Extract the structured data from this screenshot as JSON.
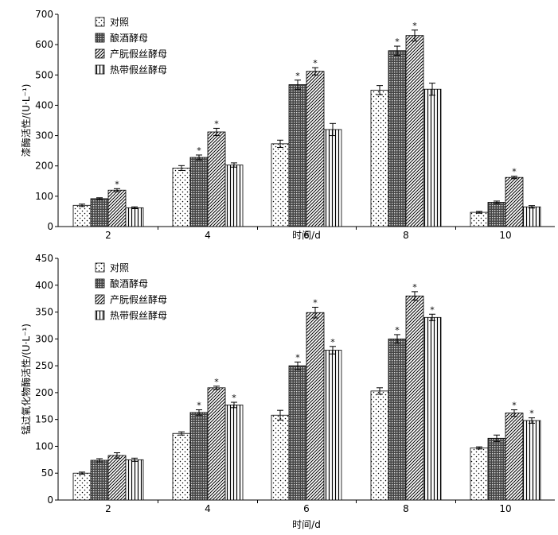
{
  "chart_data": [
    {
      "type": "bar",
      "ylabel": "漆酶活性/(U·L⁻¹)",
      "xlabel": "时间/d",
      "categories": [
        "2",
        "4",
        "6",
        "8",
        "10"
      ],
      "ylim": [
        0,
        700
      ],
      "yticks": [
        0,
        100,
        200,
        300,
        400,
        500,
        600,
        700
      ],
      "legend_position": "top-left",
      "series": [
        {
          "name": "对照",
          "pattern": "dots",
          "values": [
            70,
            193,
            273,
            450,
            47
          ],
          "errors": [
            4,
            8,
            12,
            15,
            3
          ],
          "significant": [
            false,
            false,
            false,
            false,
            false
          ]
        },
        {
          "name": "酿酒酵母",
          "pattern": "crosshatch",
          "values": [
            92,
            228,
            468,
            580,
            80
          ],
          "errors": [
            3,
            8,
            15,
            15,
            4
          ],
          "significant": [
            false,
            true,
            true,
            true,
            false
          ]
        },
        {
          "name": "产朊假丝酵母",
          "pattern": "diagonal",
          "values": [
            120,
            312,
            512,
            630,
            162
          ],
          "errors": [
            5,
            12,
            12,
            18,
            4
          ],
          "significant": [
            true,
            true,
            true,
            true,
            true
          ]
        },
        {
          "name": "热带假丝酵母",
          "pattern": "vertical",
          "values": [
            62,
            203,
            320,
            453,
            65
          ],
          "errors": [
            3,
            7,
            20,
            20,
            4
          ],
          "significant": [
            false,
            false,
            false,
            false,
            false
          ]
        }
      ]
    },
    {
      "type": "bar",
      "ylabel": "锰过氧化物酶活性/(U·L⁻¹)",
      "xlabel": "时间/d",
      "categories": [
        "2",
        "4",
        "6",
        "8",
        "10"
      ],
      "ylim": [
        0,
        450
      ],
      "yticks": [
        0,
        50,
        100,
        150,
        200,
        250,
        300,
        350,
        400,
        450
      ],
      "legend_position": "top-left",
      "series": [
        {
          "name": "对照",
          "pattern": "dots",
          "values": [
            50,
            124,
            158,
            203,
            97
          ],
          "errors": [
            2,
            3,
            9,
            6,
            2
          ],
          "significant": [
            false,
            false,
            false,
            false,
            false
          ]
        },
        {
          "name": "酿酒酵母",
          "pattern": "crosshatch",
          "values": [
            74,
            163,
            250,
            300,
            115
          ],
          "errors": [
            3,
            5,
            7,
            8,
            6
          ],
          "significant": [
            false,
            true,
            true,
            true,
            false
          ]
        },
        {
          "name": "产朊假丝酵母",
          "pattern": "diagonal",
          "values": [
            83,
            209,
            349,
            380,
            162
          ],
          "errors": [
            5,
            3,
            10,
            8,
            6
          ],
          "significant": [
            false,
            true,
            true,
            true,
            true
          ]
        },
        {
          "name": "热带假丝酵母",
          "pattern": "vertical",
          "values": [
            75,
            177,
            279,
            340,
            148
          ],
          "errors": [
            3,
            5,
            7,
            6,
            5
          ],
          "significant": [
            false,
            true,
            true,
            true,
            true
          ]
        }
      ]
    }
  ],
  "significance_marker": "*"
}
